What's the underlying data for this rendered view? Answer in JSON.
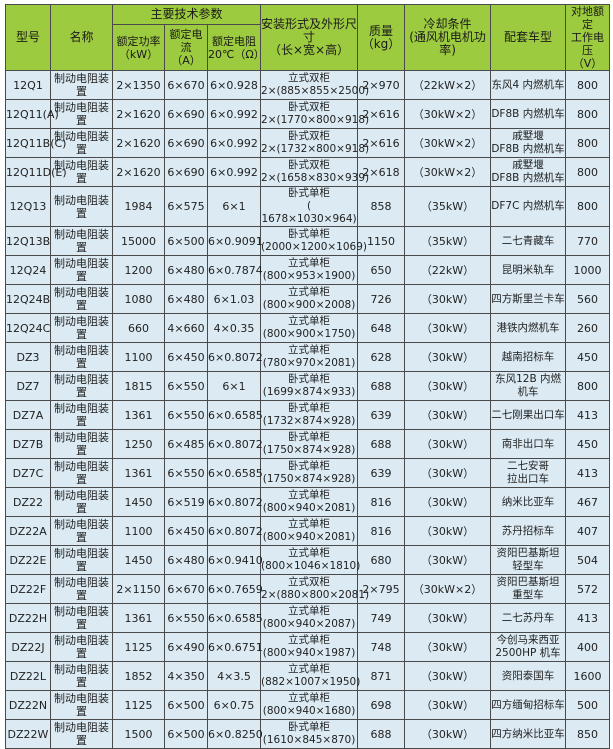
{
  "header": {
    "model": "型号",
    "name": "名称",
    "main_params": "主要技术参数",
    "power": "额定功率\n（kW）",
    "current": "额定电流\n（A）",
    "resistance": "额定电阻\n20℃（Ω）",
    "install": "安装形式及外形尺寸\n（长×宽×高）",
    "mass": "质量\n（kg）",
    "cooling": "冷却条件\n(通风机电机功率)",
    "vehicle": "配套车型",
    "voltage": "对地额定\n工作电压\n（V）"
  },
  "colors": {
    "header_bg": "#9dcb3f",
    "cell_bg": "#dcebf3",
    "border": "#4a4a4a"
  },
  "rows": [
    {
      "model": "12Q1",
      "name": "制动电阻装置",
      "power": "2×1350",
      "current": "6×670",
      "resistance": "6×0.928",
      "install": "立式双柜\n2×(885×855×2500)",
      "mass": "2×970",
      "cooling": "（22kW×2）",
      "vehicle": "东风4 内燃机车",
      "voltage": "800"
    },
    {
      "model": "12Q11(A)",
      "name": "制动电阻装置",
      "power": "2×1620",
      "current": "6×690",
      "resistance": "6×0.992",
      "install": "卧式双柜\n2×(1770×800×918)",
      "mass": "2×616",
      "cooling": "（30kW×2）",
      "vehicle": "DF8B 内燃机车",
      "voltage": "800"
    },
    {
      "model": "12Q11B(C)",
      "name": "制动电阻装置",
      "power": "2×1620",
      "current": "6×690",
      "resistance": "6×0.992",
      "install": "卧式双柜\n2×(1732×800×918)",
      "mass": "2×616",
      "cooling": "（30kW×2）",
      "vehicle": "戚墅堰\nDF8B 内燃机车",
      "voltage": "800"
    },
    {
      "model": "12Q11D(E)",
      "name": "制动电阻装置",
      "power": "2×1620",
      "current": "6×690",
      "resistance": "6×0.992",
      "install": "卧式双柜\n2×(1658×830×939)",
      "mass": "2×618",
      "cooling": "（30kW×2）",
      "vehicle": "戚墅堰\nDF8B 内燃机车",
      "voltage": "800"
    },
    {
      "model": "12Q13",
      "name": "制动电阻装置",
      "power": "1984",
      "current": "6×575",
      "resistance": "6×1",
      "install": "卧式单柜\n( 1678×1030×964)",
      "mass": "858",
      "cooling": "（35kW）",
      "vehicle": "DF7C 内燃机车",
      "voltage": "800"
    },
    {
      "model": "12Q13B",
      "name": "制动电阻装置",
      "power": "15000",
      "current": "6×500",
      "resistance": "6×0.9091",
      "install": "卧式单柜\n(2000×1200×1069)",
      "mass": "1150",
      "cooling": "（35kW）",
      "vehicle": "二七青藏车",
      "voltage": "770"
    },
    {
      "model": "12Q24",
      "name": "制动电阻装置",
      "power": "1200",
      "current": "6×480",
      "resistance": "6×0.7874",
      "install": "立式单柜\n(800×953×1900)",
      "mass": "650",
      "cooling": "（22kW）",
      "vehicle": "昆明米轨车",
      "voltage": "1000"
    },
    {
      "model": "12Q24B",
      "name": "制动电阻装置",
      "power": "1080",
      "current": "6×480",
      "resistance": "6×1.03",
      "install": "立式单柜\n(800×900×2008)",
      "mass": "726",
      "cooling": "（30kW）",
      "vehicle": "四方斯里兰卡车",
      "voltage": "560"
    },
    {
      "model": "12Q24C",
      "name": "制动电阻装置",
      "power": "660",
      "current": "4×660",
      "resistance": "4×0.35",
      "install": "立式单柜\n(800×900×1750)",
      "mass": "648",
      "cooling": "（30kW）",
      "vehicle": "港铁内燃机车",
      "voltage": "260"
    },
    {
      "model": "DZ3",
      "name": "制动电阻装置",
      "power": "1100",
      "current": "6×450",
      "resistance": "6×0.8072",
      "install": "立式单柜\n(780×970×2081)",
      "mass": "628",
      "cooling": "（30kW）",
      "vehicle": "越南招标车",
      "voltage": "450"
    },
    {
      "model": "DZ7",
      "name": "制动电阻装置",
      "power": "1815",
      "current": "6×550",
      "resistance": "6×1",
      "install": "卧式单柜\n(1699×874×933)",
      "mass": "688",
      "cooling": "（30kW）",
      "vehicle": "东风12B 内燃机车",
      "voltage": "800"
    },
    {
      "model": "DZ7A",
      "name": "制动电阻装置",
      "power": "1361",
      "current": "6×550",
      "resistance": "6×0.6585",
      "install": "卧式单柜\n(1732×874×928)",
      "mass": "639",
      "cooling": "（30kW）",
      "vehicle": "二七刚果出口车",
      "voltage": "413"
    },
    {
      "model": "DZ7B",
      "name": "制动电阻装置",
      "power": "1250",
      "current": "6×485",
      "resistance": "6×0.8072",
      "install": "卧式单柜\n(1750×874×928)",
      "mass": "688",
      "cooling": "（30kW）",
      "vehicle": "南非出口车",
      "voltage": "450"
    },
    {
      "model": "DZ7C",
      "name": "制动电阻装置",
      "power": "1361",
      "current": "6×550",
      "resistance": "6×0.6585",
      "install": "卧式单柜\n(1750×874×928)",
      "mass": "639",
      "cooling": "（30kW）",
      "vehicle": "二七安哥\n拉出口车",
      "voltage": "413"
    },
    {
      "model": "DZ22",
      "name": "制动电阻装置",
      "power": "1450",
      "current": "6×519",
      "resistance": "6×0.8072",
      "install": "立式单柜\n(800×940×2081)",
      "mass": "816",
      "cooling": "（30kW）",
      "vehicle": "纳米比亚车",
      "voltage": "467"
    },
    {
      "model": "DZ22A",
      "name": "制动电阻装置",
      "power": "1100",
      "current": "6×450",
      "resistance": "6×0.8072",
      "install": "立式单柜\n(800×940×2081)",
      "mass": "816",
      "cooling": "（30kW）",
      "vehicle": "苏丹招标车",
      "voltage": "407"
    },
    {
      "model": "DZ22E",
      "name": "制动电阻装置",
      "power": "1450",
      "current": "6×480",
      "resistance": "6×0.9410",
      "install": "立式单柜\n(800×1046×1810)",
      "mass": "680",
      "cooling": "（30kW）",
      "vehicle": "资阳巴基斯坦\n轻型车",
      "voltage": "504"
    },
    {
      "model": "DZ22F",
      "name": "制动电阻装置",
      "power": "2×1150",
      "current": "6×670",
      "resistance": "6×0.7659",
      "install": "立式双柜\n2×(880×800×2081)",
      "mass": "2×795",
      "cooling": "（30kW×2）",
      "vehicle": "资阳巴基斯坦\n重型车",
      "voltage": "572"
    },
    {
      "model": "DZ22H",
      "name": "制动电阻装置",
      "power": "1361",
      "current": "6×550",
      "resistance": "6×0.6585",
      "install": "立式单柜\n(800×940×2087)",
      "mass": "749",
      "cooling": "（30kW）",
      "vehicle": "二七苏丹车",
      "voltage": "413"
    },
    {
      "model": "DZ22J",
      "name": "制动电阻装置",
      "power": "1125",
      "current": "6×490",
      "resistance": "6×0.6751",
      "install": "立式单柜\n(800×940×1987)",
      "mass": "748",
      "cooling": "（30kW）",
      "vehicle": "今创马来西亚\n2500HP 机车",
      "voltage": "400"
    },
    {
      "model": "DZ22L",
      "name": "制动电阻装置",
      "power": "1852",
      "current": "4×350",
      "resistance": "4×3.5",
      "install": "立式单柜\n(882×1007×1950)",
      "mass": "871",
      "cooling": "（30kW）",
      "vehicle": "资阳泰国车",
      "voltage": "1600"
    },
    {
      "model": "DZ22N",
      "name": "制动电阻装置",
      "power": "1125",
      "current": "6×500",
      "resistance": "6×0.75",
      "install": "立式单柜\n(800×940×1680)",
      "mass": "698",
      "cooling": "（30kW）",
      "vehicle": "四方缅甸招标车",
      "voltage": "500"
    },
    {
      "model": "DZ22W",
      "name": "制动电阻装置",
      "power": "1500",
      "current": "6×500",
      "resistance": "6×0.8250",
      "install": "卧式单柜\n(1610×845×870)",
      "mass": "688",
      "cooling": "（30kW）",
      "vehicle": "四方纳米比亚车",
      "voltage": "850"
    }
  ]
}
